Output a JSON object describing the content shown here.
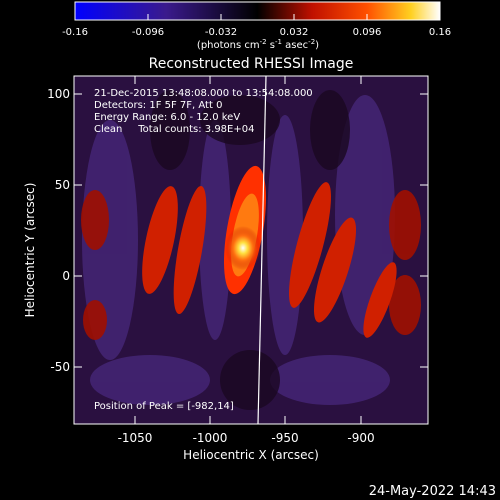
{
  "colorbar": {
    "ticks": [
      "-0.16",
      "-0.096",
      "-0.032",
      "0.032",
      "0.096",
      "0.16"
    ],
    "units_prefix": "(photons cm",
    "units_exp1": "-2",
    "units_mid": " s",
    "units_exp2": "-1",
    "units_mid2": " asec",
    "units_exp3": "-2",
    "units_suffix": ")"
  },
  "plot": {
    "title": "Reconstructed RHESSI Image",
    "annotation_lines": [
      "21-Dec-2015 13:48:08.000 to 13:54:08.000",
      "Detectors: 1F 5F 7F, Att 0",
      "Energy Range: 6.0 - 12.0 keV",
      "Clean     Total counts: 3.98E+04"
    ],
    "peak_label": "Position of Peak = [-982,14]",
    "xlabel": "Heliocentric X (arcsec)",
    "ylabel": "Heliocentric Y (arcsec)",
    "x_ticks": [
      "-1050",
      "-1000",
      "-950",
      "-900"
    ],
    "y_ticks": [
      "100",
      "50",
      "0",
      "-50"
    ]
  },
  "footer": {
    "timestamp": "24-May-2022 14:43"
  }
}
